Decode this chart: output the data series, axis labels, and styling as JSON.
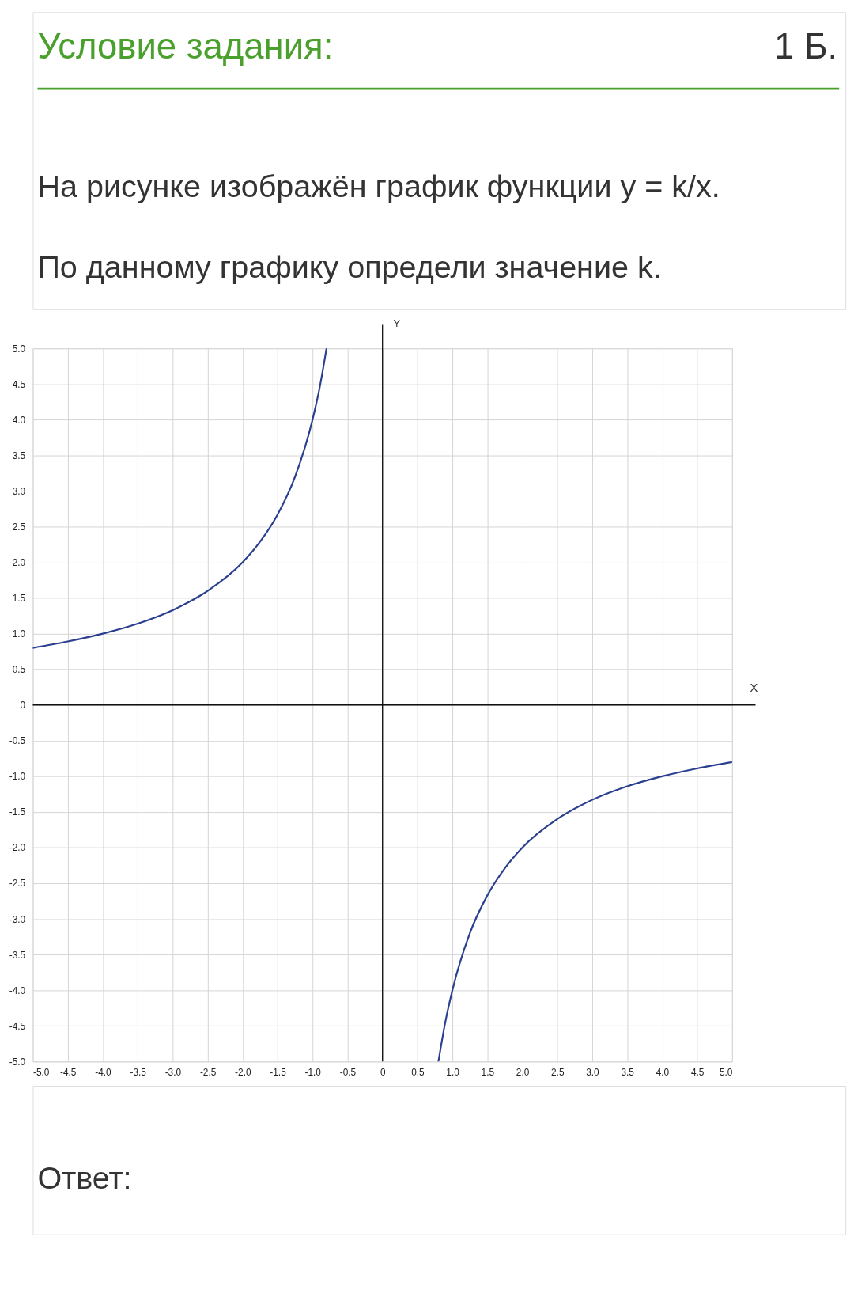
{
  "chart_data": {
    "type": "line",
    "title": "Условие задания:",
    "subtitle": "На рисунке изображён график функции y = k/x.\nПо данному графику определи значение k.",
    "xlabel": "X",
    "ylabel": "Y",
    "annotations": [
      "1 Б.",
      "Ответ:"
    ],
    "series": [
      {
        "color": "#2b3f8f",
        "x": [
          -5,
          -4.5,
          -4,
          -3.5,
          -3,
          -2.5,
          -2,
          -1.75,
          -1.5,
          -1.25,
          -1,
          -0.9,
          -0.8
        ],
        "values": [
          0.8,
          0.89,
          1,
          1.14,
          1.33,
          1.6,
          2,
          2.29,
          2.67,
          3.2,
          4,
          4.44,
          5
        ]
      },
      {
        "color": "#2b3f8f",
        "x": [
          0.8,
          0.9,
          1,
          1.25,
          1.5,
          1.75,
          2,
          2.5,
          3,
          3.5,
          4,
          4.5,
          5
        ],
        "values": [
          -5,
          -4.44,
          -4,
          -3.2,
          -2.67,
          -2.29,
          -2,
          -1.6,
          -1.33,
          -1.14,
          -1,
          -0.89,
          -0.8
        ]
      }
    ],
    "xlim": [
      -5,
      5
    ],
    "ylim": [
      -5,
      5
    ],
    "xticks": [
      {
        "value": -5,
        "label": "-5.0"
      },
      {
        "value": -4.5,
        "label": "-4.5"
      },
      {
        "value": -4,
        "label": "-4.0"
      },
      {
        "value": -3.5,
        "label": "-3.5"
      },
      {
        "value": -3,
        "label": "-3.0"
      },
      {
        "value": -2.5,
        "label": "-2.5"
      },
      {
        "value": -2,
        "label": "-2.0"
      },
      {
        "value": -1.5,
        "label": "-1.5"
      },
      {
        "value": -1,
        "label": "-1.0"
      },
      {
        "value": -0.5,
        "label": "-0.5"
      },
      0,
      0.5,
      {
        "value": 1,
        "label": "1.0"
      },
      1.5,
      {
        "value": 2,
        "label": "2.0"
      },
      2.5,
      {
        "value": 3,
        "label": "3.0"
      },
      3.5,
      {
        "value": 4,
        "label": "4.0"
      },
      4.5,
      {
        "value": 5,
        "label": "5.0"
      }
    ],
    "yticks": [
      {
        "value": -5,
        "label": "-5.0"
      },
      {
        "value": -4.5,
        "label": "-4.5"
      },
      {
        "value": -4,
        "label": "-4.0"
      },
      {
        "value": -3.5,
        "label": "-3.5"
      },
      {
        "value": -3,
        "label": "-3.0"
      },
      {
        "value": -2.5,
        "label": "-2.5"
      },
      {
        "value": -2,
        "label": "-2.0"
      },
      {
        "value": -1.5,
        "label": "-1.5"
      },
      {
        "value": -1,
        "label": "-1.0"
      },
      {
        "value": -0.5,
        "label": "-0.5"
      },
      0,
      0.5,
      {
        "value": 1,
        "label": "1.0"
      },
      1.5,
      {
        "value": 2,
        "label": "2.0"
      },
      2.5,
      {
        "value": 3,
        "label": "3.0"
      },
      3.5,
      {
        "value": 4,
        "label": "4.0"
      },
      4.5,
      {
        "value": 5,
        "label": "5.0"
      }
    ],
    "grid": true,
    "marker": "none",
    "line_style": "solid"
  }
}
